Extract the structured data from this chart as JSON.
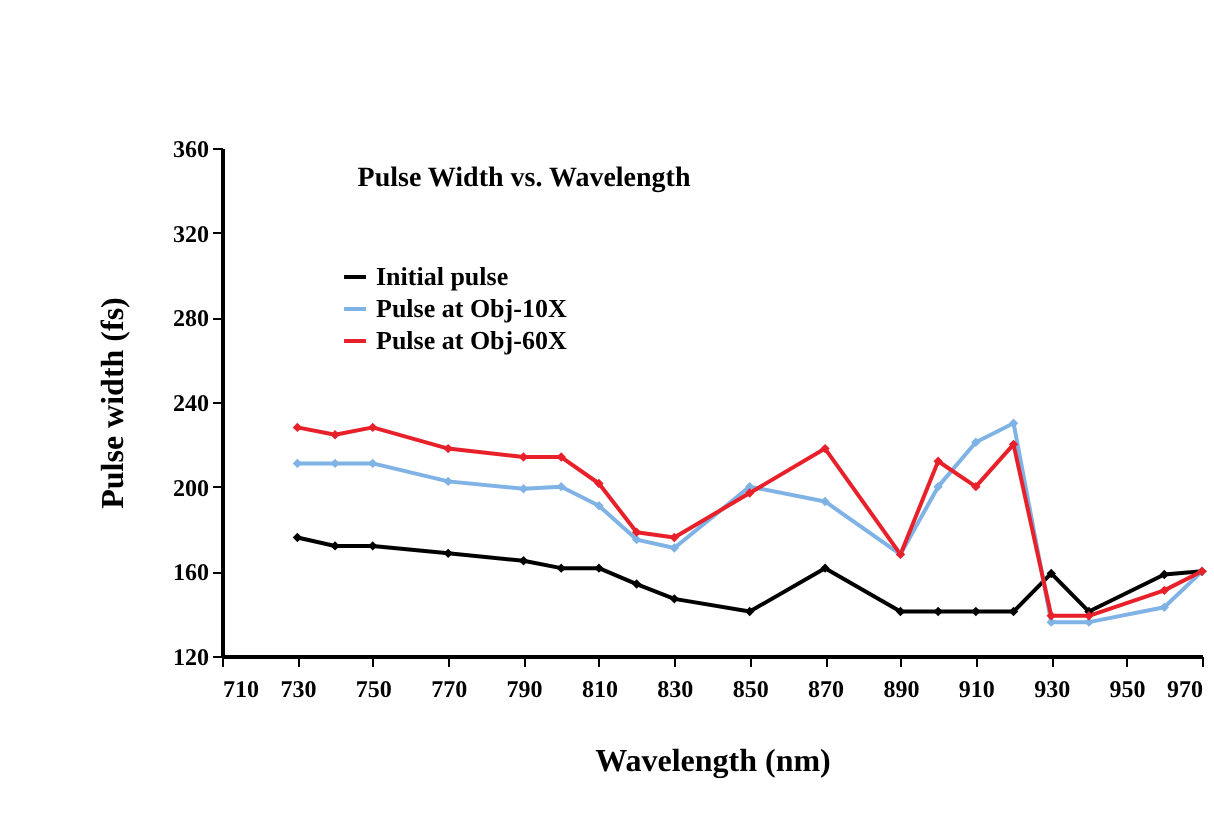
{
  "chart_data": {
    "type": "line",
    "title": "Pulse Width vs. Wavelength",
    "xlabel": "Wavelength (nm)",
    "ylabel": "Pulse width (fs)",
    "x": [
      730,
      740,
      750,
      770,
      790,
      800,
      810,
      820,
      830,
      850,
      870,
      890,
      900,
      910,
      920,
      930,
      940,
      960,
      970
    ],
    "series": [
      {
        "name": "Initial pulse",
        "color": "#000000",
        "values": [
          176,
          172,
          172,
          168.5,
          165,
          161.5,
          161.5,
          154,
          147,
          141,
          161.5,
          141,
          141,
          141,
          141,
          159,
          141,
          158.5,
          160
        ]
      },
      {
        "name": "Pulse at Obj-10X",
        "color": "#7fb2e5",
        "values": [
          211,
          211,
          211,
          202.5,
          199,
          200,
          191,
          175,
          171,
          200,
          193,
          168,
          200,
          221,
          230,
          136,
          136,
          143,
          160
        ]
      },
      {
        "name": "Pulse at Obj-60X",
        "color": "#e8202a",
        "values": [
          228,
          224.5,
          228,
          218,
          214,
          214,
          201.5,
          178.5,
          176,
          197,
          218,
          168,
          212,
          200,
          220,
          139,
          139,
          151,
          160
        ]
      }
    ],
    "xlim": [
      710,
      970
    ],
    "xticks": [
      710,
      730,
      750,
      770,
      790,
      810,
      830,
      850,
      870,
      890,
      910,
      930,
      950,
      970
    ],
    "ylim": [
      120,
      360
    ],
    "yticks": [
      120,
      160,
      200,
      240,
      280,
      320,
      360
    ],
    "grid": false,
    "legend": "top left",
    "marker": "diamond",
    "line_style": "solid"
  }
}
